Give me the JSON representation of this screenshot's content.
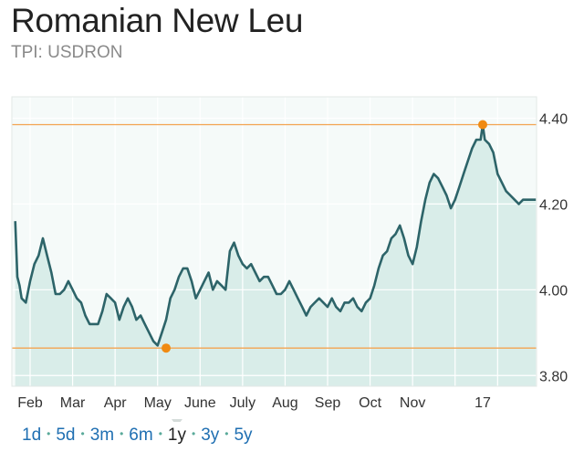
{
  "header": {
    "title": "Romanian New Leu",
    "ticker": "TPI: USDRON"
  },
  "chart_data": {
    "type": "area",
    "title": "Romanian New Leu",
    "xlabel": "",
    "ylabel": "",
    "ylim": [
      3.775,
      4.45
    ],
    "yticks": [
      3.8,
      4.0,
      4.2,
      4.4
    ],
    "ytick_labels": [
      "3.80",
      "4.00",
      "4.20",
      "4.40"
    ],
    "xtick_labels": [
      "Feb",
      "Mar",
      "Apr",
      "May",
      "June",
      "July",
      "Aug",
      "Sep",
      "Oct",
      "Nov",
      "17"
    ],
    "grid": true,
    "high": {
      "month_index": 10.65,
      "value": 4.385
    },
    "low": {
      "month_index": 3.2,
      "value": 3.864
    },
    "series": [
      {
        "x": [
          -0.35,
          -0.3,
          -0.25,
          -0.2,
          -0.1,
          0.0,
          0.1,
          0.2,
          0.3,
          0.4,
          0.5,
          0.6,
          0.7,
          0.8,
          0.9,
          1.0,
          1.1,
          1.2,
          1.3,
          1.4,
          1.5,
          1.6,
          1.7,
          1.8,
          1.9,
          2.0,
          2.1,
          2.2,
          2.3,
          2.4,
          2.5,
          2.6,
          2.7,
          2.8,
          2.9,
          3.0,
          3.1,
          3.2,
          3.3,
          3.4,
          3.5,
          3.6,
          3.7,
          3.8,
          3.9,
          4.0,
          4.1,
          4.2,
          4.3,
          4.4,
          4.5,
          4.6,
          4.7,
          4.8,
          4.9,
          5.0,
          5.1,
          5.2,
          5.3,
          5.4,
          5.5,
          5.6,
          5.7,
          5.8,
          5.9,
          6.0,
          6.1,
          6.2,
          6.3,
          6.4,
          6.5,
          6.6,
          6.7,
          6.8,
          6.9,
          7.0,
          7.1,
          7.2,
          7.3,
          7.4,
          7.5,
          7.6,
          7.7,
          7.8,
          7.9,
          8.0,
          8.1,
          8.2,
          8.3,
          8.4,
          8.5,
          8.6,
          8.7,
          8.8,
          8.9,
          9.0,
          9.1,
          9.2,
          9.3,
          9.4,
          9.5,
          9.6,
          9.7,
          9.8,
          9.9,
          10.0,
          10.1,
          10.2,
          10.3,
          10.4,
          10.5,
          10.6,
          10.65,
          10.7,
          10.8,
          10.9,
          11.0,
          11.1,
          11.2,
          11.3,
          11.4,
          11.5,
          11.6,
          11.7,
          11.8,
          11.9
        ],
        "y": [
          4.16,
          4.03,
          4.01,
          3.98,
          3.97,
          4.02,
          4.06,
          4.08,
          4.12,
          4.08,
          4.04,
          3.99,
          3.99,
          4.0,
          4.02,
          4.0,
          3.98,
          3.97,
          3.94,
          3.92,
          3.92,
          3.92,
          3.95,
          3.99,
          3.98,
          3.97,
          3.93,
          3.96,
          3.98,
          3.96,
          3.93,
          3.94,
          3.92,
          3.9,
          3.88,
          3.87,
          3.9,
          3.93,
          3.98,
          4.0,
          4.03,
          4.05,
          4.05,
          4.02,
          3.98,
          4.0,
          4.02,
          4.04,
          4.0,
          4.02,
          4.01,
          4.0,
          4.09,
          4.11,
          4.08,
          4.06,
          4.05,
          4.06,
          4.04,
          4.02,
          4.03,
          4.03,
          4.01,
          3.99,
          3.99,
          4.0,
          4.02,
          4.0,
          3.98,
          3.96,
          3.94,
          3.96,
          3.97,
          3.98,
          3.97,
          3.96,
          3.98,
          3.96,
          3.95,
          3.97,
          3.97,
          3.98,
          3.96,
          3.95,
          3.97,
          3.98,
          4.01,
          4.05,
          4.08,
          4.09,
          4.12,
          4.13,
          4.15,
          4.12,
          4.08,
          4.06,
          4.1,
          4.16,
          4.21,
          4.25,
          4.27,
          4.26,
          4.24,
          4.22,
          4.19,
          4.21,
          4.24,
          4.27,
          4.3,
          4.33,
          4.35,
          4.35,
          4.385,
          4.35,
          4.34,
          4.32,
          4.27,
          4.25,
          4.23,
          4.22,
          4.21,
          4.2,
          4.21,
          4.21,
          4.21,
          4.21
        ]
      }
    ],
    "colors": {
      "line": "#2d6469",
      "fill": "#d9ede9",
      "plot_bg": "#f5faf9",
      "grid": "#ffffff",
      "minmax": "#f3a451",
      "marker": "#f08a12"
    }
  },
  "ranges": {
    "items": [
      "1d",
      "5d",
      "3m",
      "6m",
      "1y",
      "3y",
      "5y"
    ],
    "active": 4
  }
}
